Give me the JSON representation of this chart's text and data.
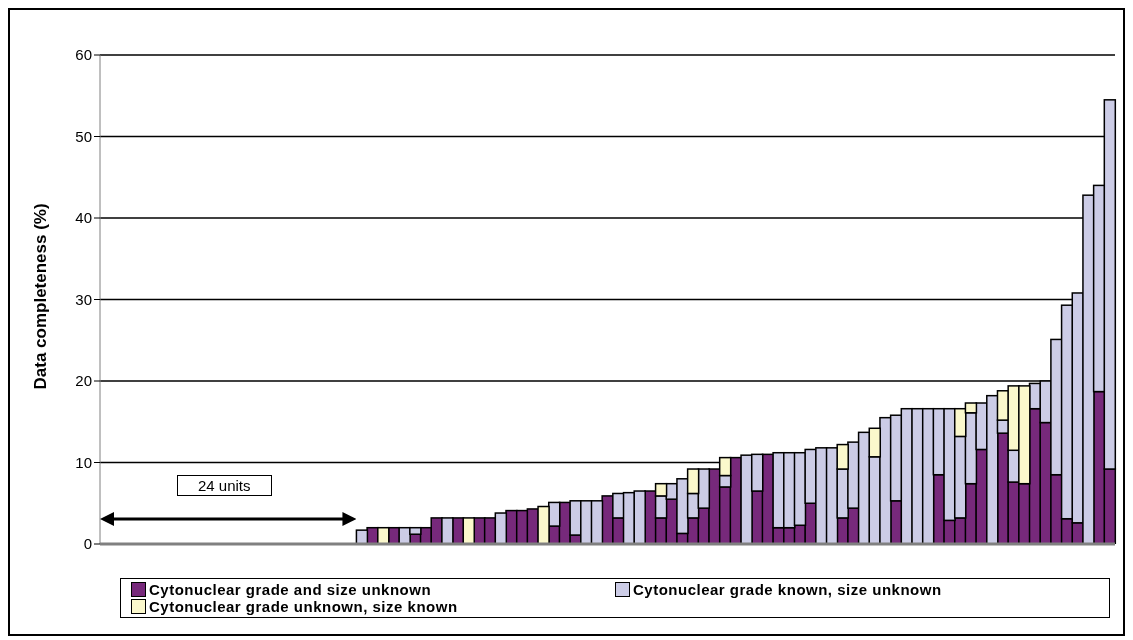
{
  "chart_data": {
    "type": "bar",
    "stacked": true,
    "ylabel": "Data completeness (%)",
    "annotations": [
      "24 units"
    ],
    "categories": [
      null,
      null,
      null,
      null,
      null,
      null,
      null,
      null,
      null,
      null,
      null,
      null,
      null,
      null,
      null,
      null,
      null,
      null,
      null,
      null,
      null,
      null,
      null,
      null,
      null,
      null,
      null,
      null,
      null,
      null,
      null,
      null,
      null,
      null,
      null,
      null,
      null,
      null,
      null,
      null,
      null,
      null,
      null,
      null,
      null,
      null,
      null,
      null,
      null,
      null,
      null,
      null,
      null,
      null,
      null,
      null,
      null,
      null,
      null,
      null,
      null,
      null,
      null,
      null,
      null,
      null,
      null,
      null,
      null,
      null,
      null,
      null,
      null,
      null,
      null,
      null,
      null,
      null,
      null,
      null,
      null,
      null,
      null,
      null,
      null,
      null,
      null,
      null,
      null,
      null,
      null,
      null,
      null,
      null,
      null
    ],
    "series": [
      {
        "name": "Cytonuclear grade and size unknown",
        "color": "#77297b",
        "values": [
          null,
          null,
          null,
          null,
          null,
          null,
          null,
          null,
          null,
          null,
          null,
          null,
          null,
          null,
          null,
          null,
          null,
          null,
          null,
          null,
          null,
          null,
          null,
          null,
          null,
          2,
          null,
          2,
          null,
          1.2,
          2,
          3.2,
          null,
          3.2,
          null,
          3.2,
          3.2,
          null,
          4.1,
          4.1,
          4.3,
          null,
          2.2,
          5.1,
          1.1,
          null,
          null,
          5.9,
          3.2,
          null,
          null,
          6.5,
          3.2,
          5.5,
          1.3,
          3.2,
          4.4,
          9.2,
          7.0,
          10.6,
          null,
          6.5,
          11.0,
          2.0,
          2.0,
          2.3,
          5.0,
          null,
          null,
          3.2,
          4.4,
          null,
          null,
          null,
          5.3,
          null,
          null,
          null,
          8.5,
          2.9,
          3.2,
          7.4,
          11.6,
          null,
          13.6,
          7.6,
          7.4,
          16.6,
          14.9,
          8.5,
          3.1,
          2.6,
          null,
          18.7,
          9.2
        ]
      },
      {
        "name": "Cytonuclear grade known, size unknown",
        "color": "#ccccE6",
        "values": [
          null,
          null,
          null,
          null,
          null,
          null,
          null,
          null,
          null,
          null,
          null,
          null,
          null,
          null,
          null,
          null,
          null,
          null,
          null,
          null,
          null,
          null,
          null,
          null,
          1.7,
          null,
          null,
          null,
          2,
          0.8,
          null,
          null,
          3.2,
          null,
          null,
          null,
          null,
          3.8,
          null,
          null,
          null,
          null,
          2.9,
          null,
          4.2,
          5.3,
          5.3,
          null,
          3.0,
          6.3,
          6.5,
          null,
          2.7,
          1.9,
          6.7,
          3.0,
          4.8,
          null,
          1.4,
          null,
          10.9,
          4.5,
          null,
          9.2,
          9.2,
          8.9,
          6.6,
          11.8,
          11.8,
          6.0,
          8.1,
          13.7,
          10.7,
          15.5,
          10.5,
          16.6,
          16.6,
          16.6,
          8.1,
          13.7,
          10.0,
          8.7,
          5.7,
          18.2,
          1.6,
          3.9,
          null,
          3.1,
          5.1,
          16.6,
          26.2,
          28.2,
          42.8,
          25.3,
          45.3
        ]
      },
      {
        "name": "Cytonuclear grade unknown, size known",
        "color": "#fbf8cc",
        "values": [
          null,
          null,
          null,
          null,
          null,
          null,
          null,
          null,
          null,
          null,
          null,
          null,
          null,
          null,
          null,
          null,
          null,
          null,
          null,
          null,
          null,
          null,
          null,
          null,
          null,
          null,
          2,
          null,
          null,
          null,
          null,
          null,
          null,
          null,
          3.2,
          null,
          null,
          null,
          null,
          null,
          null,
          4.6,
          null,
          null,
          null,
          null,
          null,
          null,
          null,
          null,
          null,
          null,
          1.5,
          null,
          null,
          3.0,
          null,
          null,
          2.2,
          null,
          null,
          null,
          null,
          null,
          null,
          null,
          null,
          null,
          null,
          3.0,
          null,
          null,
          3.5,
          null,
          null,
          null,
          null,
          null,
          null,
          null,
          3.4,
          1.2,
          null,
          null,
          3.6,
          7.9,
          12.0,
          null,
          null,
          null,
          null,
          null,
          null,
          null,
          null
        ]
      }
    ],
    "ylim": [
      0,
      60
    ],
    "yticks": [
      0,
      10,
      20,
      30,
      40,
      50,
      60
    ],
    "grid": "y",
    "legend": "bottom"
  }
}
